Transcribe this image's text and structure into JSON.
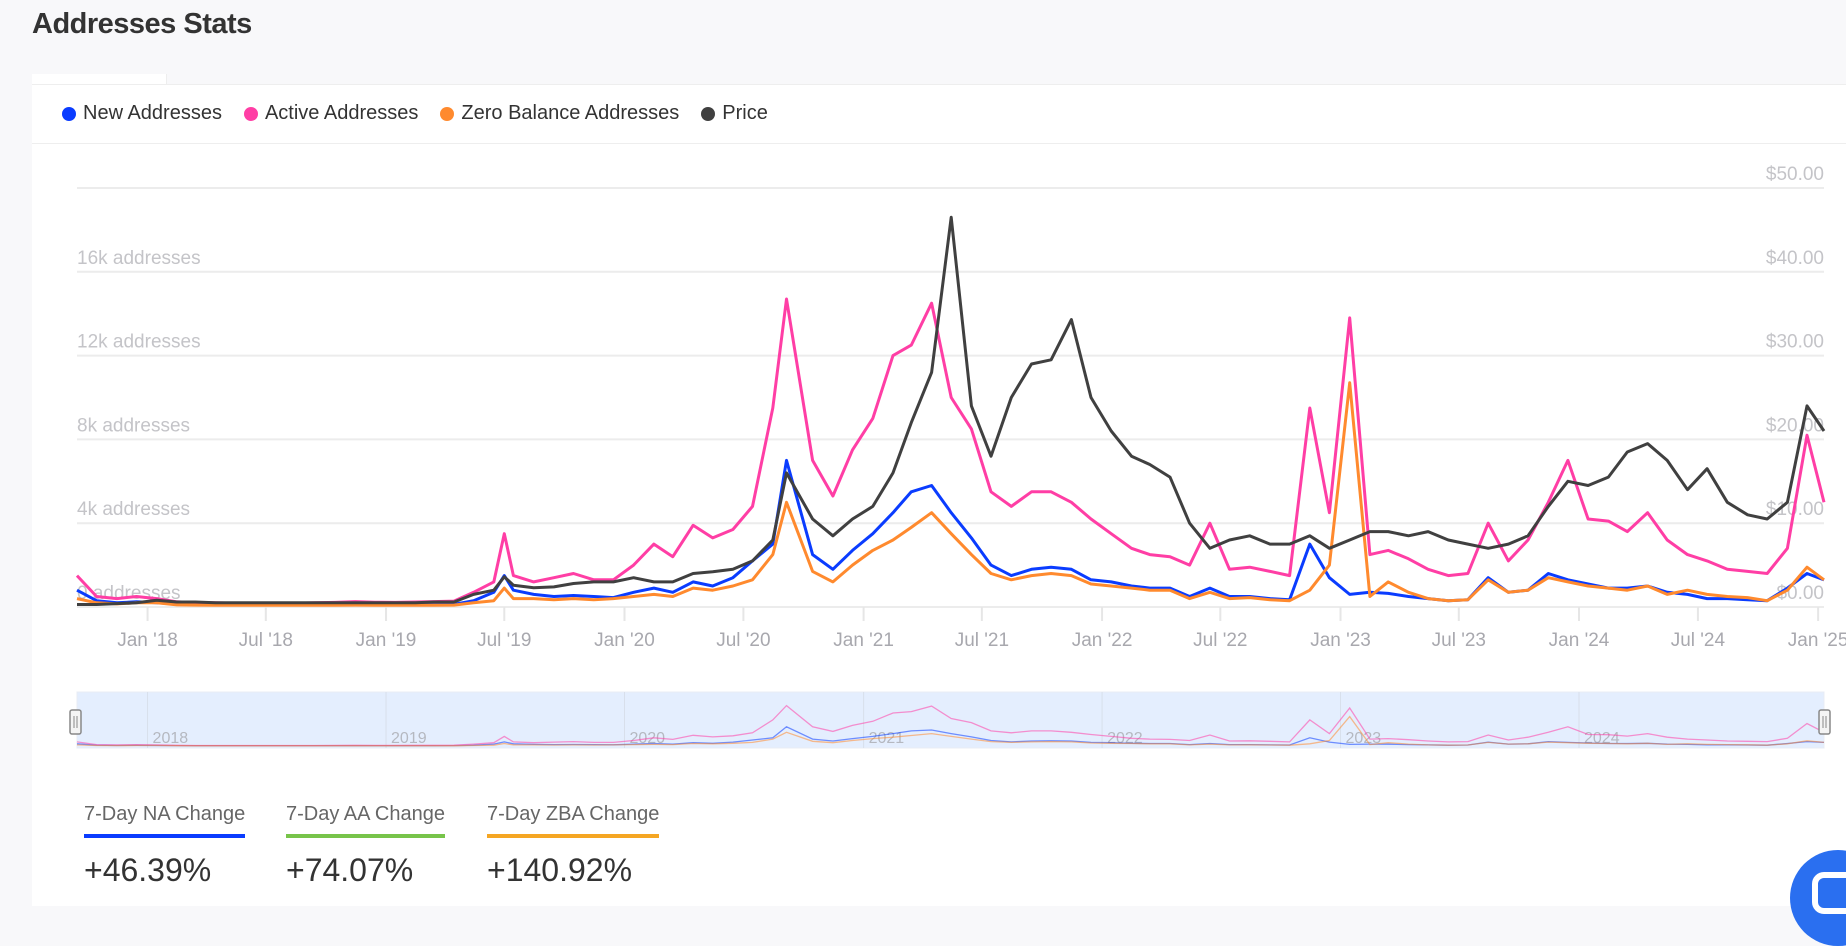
{
  "page": {
    "title": "Addresses Stats"
  },
  "legend": [
    {
      "label": "New Addresses",
      "color": "#0a3cff"
    },
    {
      "label": "Active Addresses",
      "color": "#ff3ea5"
    },
    {
      "label": "Zero Balance Addresses",
      "color": "#ff8a2e"
    },
    {
      "label": "Price",
      "color": "#404040"
    }
  ],
  "stats": [
    {
      "label": "7-Day NA Change",
      "value": "+46.39%",
      "color": "#0a3cff"
    },
    {
      "label": "7-Day AA Change",
      "value": "+74.07%",
      "color": "#77c44a"
    },
    {
      "label": "7-Day ZBA Change",
      "value": "+140.92%",
      "color": "#f5a623"
    }
  ],
  "chart_data": {
    "type": "line",
    "xlim": [
      "2017-09-15",
      "2025-01-10"
    ],
    "x_tick_labels": [
      "Jan '18",
      "Jul '18",
      "Jan '19",
      "Jul '19",
      "Jan '20",
      "Jul '20",
      "Jan '21",
      "Jul '21",
      "Jan '22",
      "Jul '22",
      "Jan '23",
      "Jul '23",
      "Jan '24",
      "Jul '24",
      "Jan '25"
    ],
    "x_ticks": [
      "2018-01-01",
      "2018-07-01",
      "2019-01-01",
      "2019-07-01",
      "2020-01-01",
      "2020-07-01",
      "2021-01-01",
      "2021-07-01",
      "2022-01-01",
      "2022-07-01",
      "2023-01-01",
      "2023-07-01",
      "2024-01-01",
      "2024-07-01",
      "2025-01-01"
    ],
    "y_left": {
      "ylim": [
        0,
        20000
      ],
      "ticks": [
        0,
        4000,
        8000,
        12000,
        16000
      ],
      "tick_labels": [
        "0 addresses",
        "4k addresses",
        "8k addresses",
        "12k addresses",
        "16k addresses"
      ]
    },
    "y_right": {
      "ylim": [
        0,
        50
      ],
      "ticks": [
        0,
        10,
        20,
        30,
        40,
        50
      ],
      "tick_labels": [
        "$0.00",
        "$10.00",
        "$20.00",
        "$30.00",
        "$40.00",
        "$50.00"
      ]
    },
    "grid": true,
    "legend_position": "top-left",
    "navigator": {
      "year_labels": [
        "2018",
        "2019",
        "2020",
        "2021",
        "2022",
        "2023",
        "2024"
      ],
      "year_ticks": [
        "2018-01-01",
        "2019-01-01",
        "2020-01-01",
        "2021-01-01",
        "2022-01-01",
        "2023-01-01",
        "2024-01-01"
      ]
    },
    "x": [
      "2017-09-15",
      "2017-10-15",
      "2017-11-15",
      "2017-12-15",
      "2018-01-15",
      "2018-02-15",
      "2018-03-15",
      "2018-04-15",
      "2018-05-15",
      "2018-06-15",
      "2018-07-15",
      "2018-08-15",
      "2018-09-15",
      "2018-10-15",
      "2018-11-15",
      "2018-12-15",
      "2019-01-15",
      "2019-02-15",
      "2019-03-15",
      "2019-04-15",
      "2019-05-15",
      "2019-06-15",
      "2019-07-01",
      "2019-07-15",
      "2019-08-15",
      "2019-09-15",
      "2019-10-15",
      "2019-11-15",
      "2019-12-15",
      "2020-01-15",
      "2020-02-15",
      "2020-03-15",
      "2020-04-15",
      "2020-05-15",
      "2020-06-15",
      "2020-07-15",
      "2020-08-15",
      "2020-09-05",
      "2020-10-15",
      "2020-11-15",
      "2020-12-15",
      "2021-01-15",
      "2021-02-15",
      "2021-03-15",
      "2021-04-15",
      "2021-05-15",
      "2021-06-15",
      "2021-07-15",
      "2021-08-15",
      "2021-09-15",
      "2021-10-15",
      "2021-11-15",
      "2021-12-15",
      "2022-01-15",
      "2022-02-15",
      "2022-03-15",
      "2022-04-15",
      "2022-05-15",
      "2022-06-15",
      "2022-07-15",
      "2022-08-15",
      "2022-09-15",
      "2022-10-15",
      "2022-11-15",
      "2022-12-15",
      "2023-01-15",
      "2023-02-15",
      "2023-03-15",
      "2023-04-15",
      "2023-05-15",
      "2023-06-15",
      "2023-07-15",
      "2023-08-15",
      "2023-09-15",
      "2023-10-15",
      "2023-11-15",
      "2023-12-15",
      "2024-01-15",
      "2024-02-15",
      "2024-03-15",
      "2024-04-15",
      "2024-05-15",
      "2024-06-15",
      "2024-07-15",
      "2024-08-15",
      "2024-09-15",
      "2024-10-15",
      "2024-11-15",
      "2024-12-15",
      "2025-01-10"
    ],
    "series": [
      {
        "name": "New Addresses",
        "axis": "left",
        "color": "#0a3cff",
        "values": [
          800,
          300,
          200,
          250,
          200,
          150,
          120,
          110,
          100,
          100,
          100,
          100,
          100,
          110,
          120,
          110,
          110,
          110,
          120,
          130,
          300,
          700,
          1500,
          800,
          600,
          500,
          550,
          500,
          450,
          700,
          900,
          700,
          1200,
          1000,
          1400,
          2200,
          3000,
          7000,
          2500,
          1800,
          2700,
          3500,
          4500,
          5500,
          5800,
          4500,
          3300,
          2000,
          1500,
          1800,
          1900,
          1800,
          1300,
          1200,
          1000,
          900,
          900,
          500,
          900,
          500,
          500,
          400,
          350,
          3000,
          1400,
          600,
          700,
          650,
          500,
          400,
          300,
          350,
          1400,
          700,
          800,
          1600,
          1300,
          1100,
          900,
          900,
          1000,
          700,
          600,
          400,
          400,
          350,
          300,
          900,
          1600,
          1300
        ]
      },
      {
        "name": "Active Addresses",
        "axis": "left",
        "color": "#ff3ea5",
        "values": [
          1500,
          500,
          400,
          500,
          400,
          250,
          200,
          200,
          180,
          170,
          170,
          180,
          200,
          220,
          260,
          230,
          220,
          240,
          260,
          280,
          700,
          1200,
          3500,
          1500,
          1200,
          1400,
          1600,
          1300,
          1300,
          2000,
          3000,
          2400,
          3900,
          3300,
          3700,
          4800,
          9500,
          14700,
          7000,
          5300,
          7500,
          9000,
          12000,
          12500,
          14500,
          10000,
          8500,
          5500,
          4800,
          5500,
          5500,
          5000,
          4200,
          3500,
          2800,
          2500,
          2400,
          2000,
          4000,
          1800,
          1900,
          1700,
          1500,
          9500,
          4500,
          13800,
          2500,
          2700,
          2300,
          1800,
          1500,
          1600,
          4000,
          2200,
          3200,
          5000,
          7000,
          4200,
          4100,
          3600,
          4500,
          3200,
          2500,
          2200,
          1800,
          1700,
          1600,
          2800,
          8200,
          5000
        ]
      },
      {
        "name": "Zero Balance Addresses",
        "axis": "left",
        "color": "#ff8a2e",
        "values": [
          400,
          200,
          150,
          200,
          200,
          100,
          90,
          80,
          80,
          80,
          80,
          80,
          80,
          80,
          90,
          80,
          80,
          80,
          80,
          90,
          200,
          300,
          900,
          400,
          400,
          350,
          400,
          350,
          400,
          500,
          600,
          500,
          900,
          800,
          1000,
          1300,
          2500,
          5000,
          1700,
          1200,
          2000,
          2700,
          3200,
          3800,
          4500,
          3500,
          2500,
          1600,
          1300,
          1500,
          1600,
          1500,
          1100,
          1000,
          900,
          800,
          800,
          400,
          700,
          400,
          450,
          350,
          300,
          800,
          2000,
          10700,
          500,
          1200,
          700,
          400,
          300,
          350,
          1300,
          700,
          800,
          1400,
          1200,
          1000,
          900,
          800,
          1000,
          600,
          800,
          600,
          500,
          450,
          300,
          800,
          1900,
          1300
        ]
      },
      {
        "name": "Price",
        "axis": "right",
        "color": "#404040",
        "values": [
          0.3,
          0.3,
          0.4,
          0.5,
          0.8,
          0.6,
          0.6,
          0.5,
          0.5,
          0.5,
          0.5,
          0.5,
          0.5,
          0.5,
          0.5,
          0.5,
          0.5,
          0.5,
          0.6,
          0.6,
          1.5,
          2.0,
          3.6,
          2.6,
          2.3,
          2.4,
          2.8,
          3.0,
          3.0,
          3.5,
          3.0,
          3.0,
          4.0,
          4.2,
          4.5,
          5.5,
          8.0,
          16.0,
          10.5,
          8.5,
          10.5,
          12.0,
          16.0,
          22.0,
          28.0,
          46.5,
          24.0,
          18.0,
          25.0,
          29.0,
          29.5,
          34.3,
          25.0,
          21.0,
          18.0,
          17.0,
          15.5,
          10.0,
          7.0,
          8.0,
          8.5,
          7.5,
          7.5,
          8.5,
          7.0,
          8.0,
          9.0,
          9.0,
          8.5,
          9.0,
          8.0,
          7.5,
          7.0,
          7.5,
          8.5,
          12.0,
          15.0,
          14.5,
          15.5,
          18.5,
          19.5,
          17.5,
          14.0,
          16.5,
          12.5,
          11.0,
          10.5,
          12.5,
          24.0,
          21.0
        ]
      }
    ]
  }
}
